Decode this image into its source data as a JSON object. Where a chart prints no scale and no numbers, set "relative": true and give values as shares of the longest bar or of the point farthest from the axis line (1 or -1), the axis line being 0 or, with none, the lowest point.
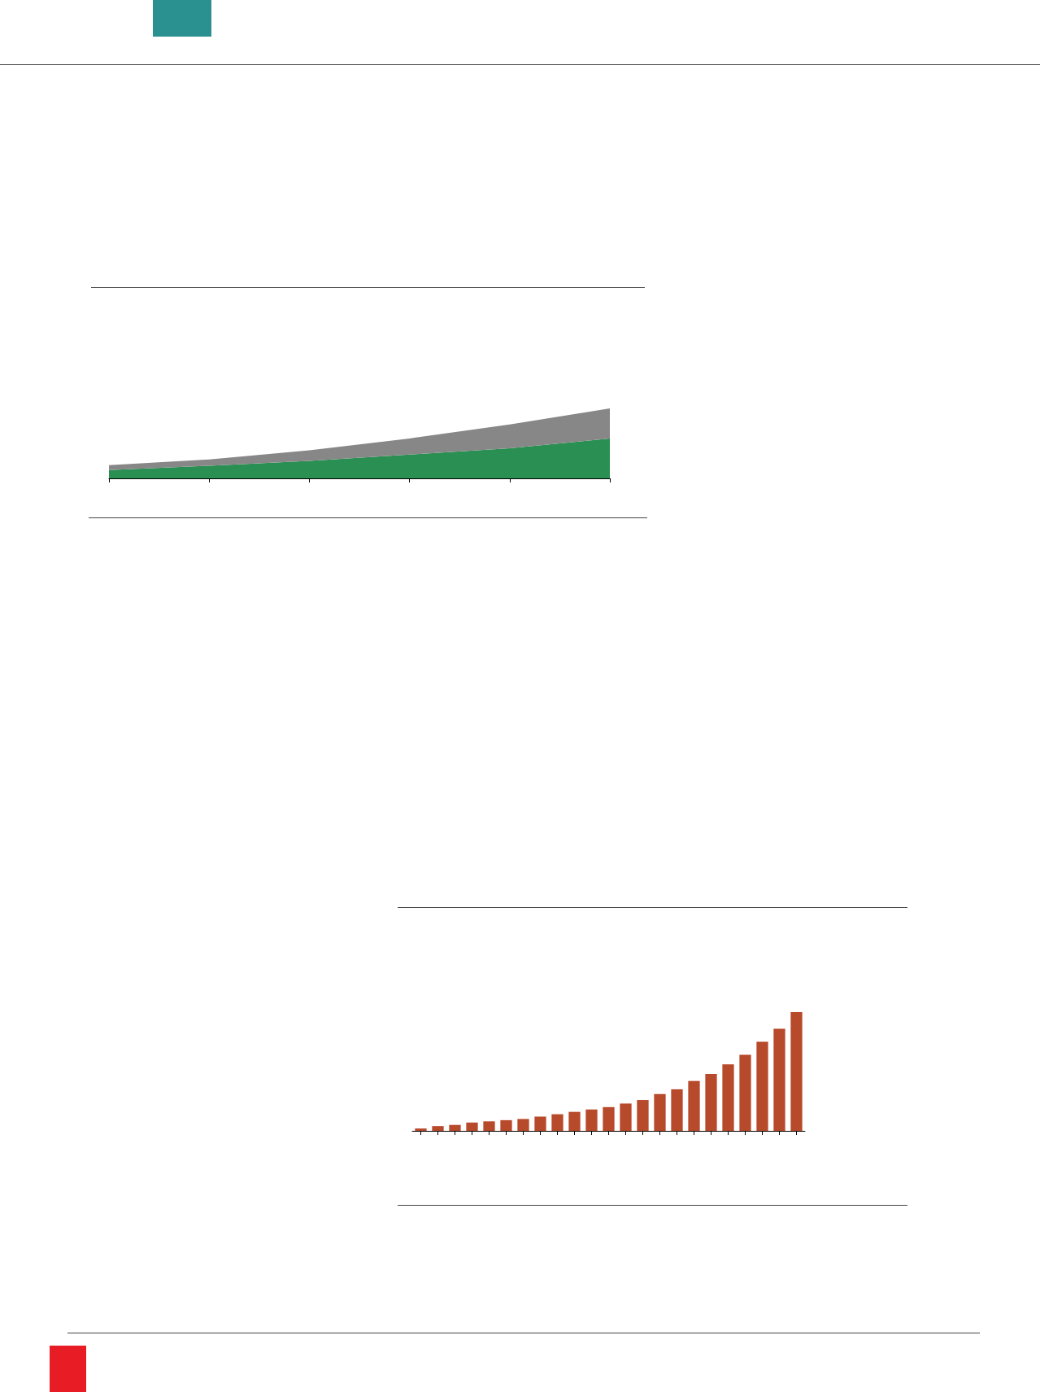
{
  "chart_data": [
    {
      "type": "area",
      "relative": true,
      "stacked": true,
      "categories": [
        null,
        null,
        null,
        null,
        null,
        null
      ],
      "series": [
        {
          "color": "#2a8f52",
          "values": [
            0.12,
            0.18,
            0.25,
            0.34,
            0.43,
            0.57
          ]
        },
        {
          "color": "#878787",
          "values": [
            0.07,
            0.09,
            0.15,
            0.23,
            0.34,
            0.43
          ]
        }
      ]
    },
    {
      "type": "bar",
      "relative": true,
      "color": "#b84a2c",
      "categories": [
        null,
        null,
        null,
        null,
        null,
        null,
        null,
        null,
        null,
        null,
        null,
        null,
        null,
        null,
        null,
        null,
        null,
        null,
        null,
        null,
        null,
        null,
        null
      ],
      "values": [
        0.02,
        0.04,
        0.05,
        0.07,
        0.08,
        0.09,
        0.1,
        0.12,
        0.14,
        0.16,
        0.18,
        0.2,
        0.23,
        0.26,
        0.31,
        0.35,
        0.42,
        0.48,
        0.56,
        0.64,
        0.75,
        0.86,
        1
      ]
    }
  ]
}
